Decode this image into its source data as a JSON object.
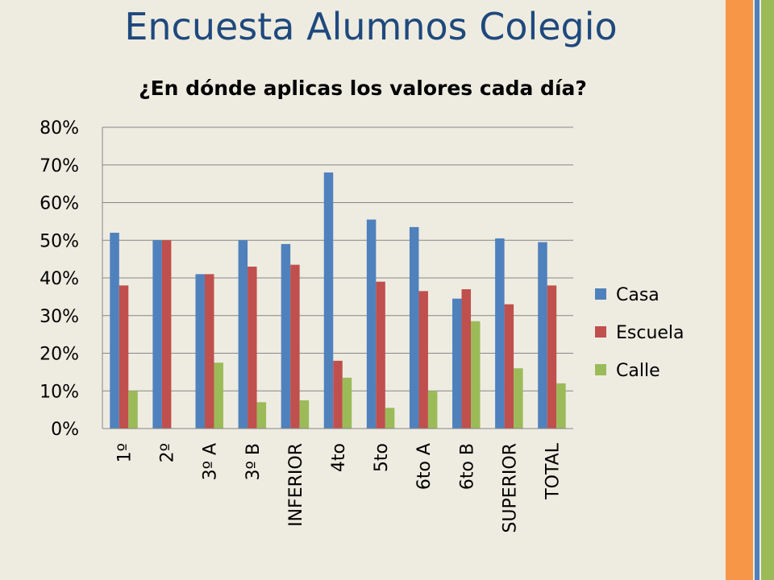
{
  "slide": {
    "title": "Encuesta Alumnos Colegio"
  },
  "theme": {
    "background": "#eeece1",
    "title_color": "#1f497d",
    "stripe_colors": [
      "#f79646",
      "#4f81bd",
      "#9bbb59"
    ]
  },
  "chart_data": {
    "type": "bar",
    "title": "¿En dónde aplicas los valores cada día?",
    "xlabel": "",
    "ylabel": "",
    "ylim": [
      0,
      0.8
    ],
    "ytick_values": [
      0,
      0.1,
      0.2,
      0.3,
      0.4,
      0.5,
      0.6,
      0.7,
      0.8
    ],
    "ytick_labels": [
      "0%",
      "10%",
      "20%",
      "30%",
      "40%",
      "50%",
      "60%",
      "70%",
      "80%"
    ],
    "grid": true,
    "legend_position": "right",
    "categories": [
      "1º",
      "2º",
      "3º A",
      "3º B",
      "INFERIOR",
      "4to",
      "5to",
      "6to A",
      "6to B",
      "SUPERIOR",
      "TOTAL"
    ],
    "series": [
      {
        "name": "Casa",
        "color": "#4f81bd",
        "values": [
          0.52,
          0.5,
          0.41,
          0.5,
          0.49,
          0.68,
          0.555,
          0.535,
          0.345,
          0.505,
          0.495
        ]
      },
      {
        "name": "Escuela",
        "color": "#c0504d",
        "values": [
          0.38,
          0.5,
          0.41,
          0.43,
          0.435,
          0.18,
          0.39,
          0.365,
          0.37,
          0.33,
          0.38
        ]
      },
      {
        "name": "Calle",
        "color": "#9bbb59",
        "values": [
          0.1,
          0,
          0.175,
          0.07,
          0.075,
          0.135,
          0.055,
          0.1,
          0.285,
          0.16,
          0.12
        ]
      }
    ]
  }
}
